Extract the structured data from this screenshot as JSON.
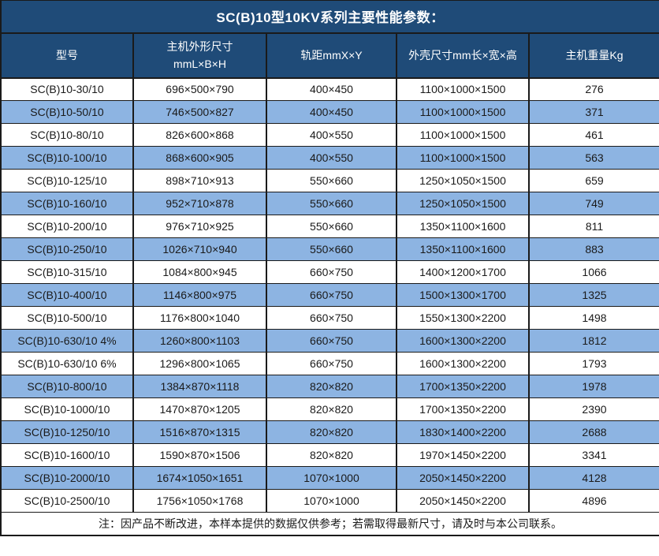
{
  "title": "SC(B)10型10KV系列主要性能参数：",
  "colors": {
    "header_bg": "#1F4B78",
    "row_alt_bg": "#8DB4E2",
    "row_bg": "#FFFFFF",
    "border": "#1A1A1A",
    "header_text": "#FFFFFF",
    "body_text": "#1A1A1A"
  },
  "table": {
    "columns": [
      {
        "label": "型号"
      },
      {
        "label": "主机外形尺寸",
        "label2": "mmL×B×H"
      },
      {
        "label": "轨距mmX×Y"
      },
      {
        "label": "外壳尺寸mm长×宽×高"
      },
      {
        "label": "主机重量Kg"
      }
    ],
    "rows": [
      [
        "SC(B)10-30/10",
        "696×500×790",
        "400×450",
        "1100×1000×1500",
        "276"
      ],
      [
        "SC(B)10-50/10",
        "746×500×827",
        "400×450",
        "1100×1000×1500",
        "371"
      ],
      [
        "SC(B)10-80/10",
        "826×600×868",
        "400×550",
        "1100×1000×1500",
        "461"
      ],
      [
        "SC(B)10-100/10",
        "868×600×905",
        "400×550",
        "1100×1000×1500",
        "563"
      ],
      [
        "SC(B)10-125/10",
        "898×710×913",
        "550×660",
        "1250×1050×1500",
        "659"
      ],
      [
        "SC(B)10-160/10",
        "952×710×878",
        "550×660",
        "1250×1050×1500",
        "749"
      ],
      [
        "SC(B)10-200/10",
        "976×710×925",
        "550×660",
        "1350×1100×1600",
        "811"
      ],
      [
        "SC(B)10-250/10",
        "1026×710×940",
        "550×660",
        "1350×1100×1600",
        "883"
      ],
      [
        "SC(B)10-315/10",
        "1084×800×945",
        "660×750",
        "1400×1200×1700",
        "1066"
      ],
      [
        "SC(B)10-400/10",
        "1146×800×975",
        "660×750",
        "1500×1300×1700",
        "1325"
      ],
      [
        "SC(B)10-500/10",
        "1176×800×1040",
        "660×750",
        "1550×1300×2200",
        "1498"
      ],
      [
        "SC(B)10-630/10 4%",
        "1260×800×1103",
        "660×750",
        "1600×1300×2200",
        "1812"
      ],
      [
        "SC(B)10-630/10 6%",
        "1296×800×1065",
        "660×750",
        "1600×1300×2200",
        "1793"
      ],
      [
        "SC(B)10-800/10",
        "1384×870×1118",
        "820×820",
        "1700×1350×2200",
        "1978"
      ],
      [
        "SC(B)10-1000/10",
        "1470×870×1205",
        "820×820",
        "1700×1350×2200",
        "2390"
      ],
      [
        "SC(B)10-1250/10",
        "1516×870×1315",
        "820×820",
        "1830×1400×2200",
        "2688"
      ],
      [
        "SC(B)10-1600/10",
        "1590×870×1506",
        "820×820",
        "1970×1450×2200",
        "3341"
      ],
      [
        "SC(B)10-2000/10",
        "1674×1050×1651",
        "1070×1000",
        "2050×1450×2200",
        "4128"
      ],
      [
        "SC(B)10-2500/10",
        "1756×1050×1768",
        "1070×1000",
        "2050×1450×2200",
        "4896"
      ]
    ],
    "note": "注：因产品不断改进，本样本提供的数据仅供参考；若需取得最新尺寸，请及时与本公司联系。"
  }
}
